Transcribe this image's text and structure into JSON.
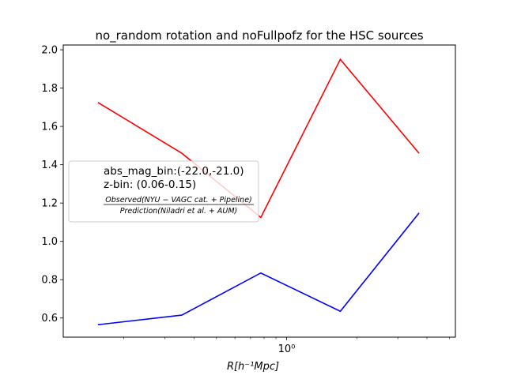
{
  "chart_data": {
    "type": "line",
    "title": "no_random rotation and noFullpofz for the HSC sources",
    "xlabel": "R[h⁻¹Mpc]",
    "xscale": "log",
    "xlim": [
      0.11,
      5.3
    ],
    "ylim": [
      0.5,
      2.025
    ],
    "yticks": [
      0.6,
      0.8,
      1.0,
      1.2,
      1.4,
      1.6,
      1.8,
      2.0
    ],
    "ytick_labels": [
      "0.6",
      "0.8",
      "1.0",
      "1.2",
      "1.4",
      "1.6",
      "1.8",
      "2.0"
    ],
    "xtick_major": [
      {
        "value": 1.0,
        "label": "10⁰"
      }
    ],
    "x": [
      0.155,
      0.355,
      0.775,
      1.7,
      3.7
    ],
    "series": [
      {
        "name": "red",
        "color": "#ff0000",
        "values": [
          1.725,
          1.46,
          1.125,
          1.95,
          1.46
        ]
      },
      {
        "name": "blue",
        "color": "#0000ff",
        "values": [
          0.565,
          0.615,
          0.835,
          0.635,
          1.148
        ]
      }
    ],
    "legend": {
      "placement": "center-left",
      "line1": "abs_mag_bin:(-22.0,-21.0)",
      "line2": "z-bin: (0.06-0.15)",
      "numerator": "Observed(NYU − VAGC cat. + Pipeline)",
      "denominator": "Prediction(Niladri et al. + AUM)"
    }
  }
}
